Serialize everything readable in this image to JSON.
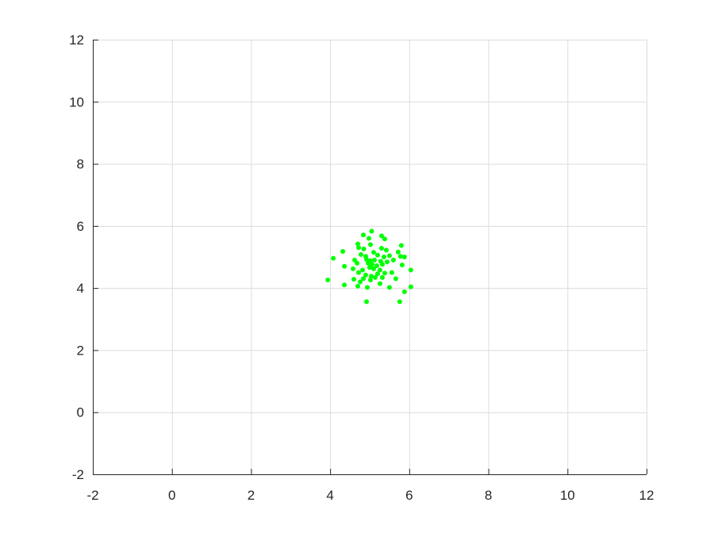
{
  "chart_data": {
    "type": "scatter",
    "title": "",
    "xlabel": "",
    "ylabel": "",
    "xlim": [
      -2,
      12
    ],
    "ylim": [
      -2,
      12
    ],
    "xticks": [
      -2,
      0,
      2,
      4,
      6,
      8,
      10,
      12
    ],
    "yticks": [
      -2,
      0,
      2,
      4,
      6,
      8,
      10,
      12
    ],
    "grid": true,
    "legend": "none",
    "series": [
      {
        "color": "#00ff00",
        "marker": "filled-circle",
        "points": [
          [
            5.05,
            5.83
          ],
          [
            5.3,
            5.68
          ],
          [
            4.84,
            5.71
          ],
          [
            4.98,
            5.6
          ],
          [
            5.38,
            5.58
          ],
          [
            4.7,
            5.42
          ],
          [
            5.02,
            5.4
          ],
          [
            5.8,
            5.37
          ],
          [
            4.72,
            5.3
          ],
          [
            4.85,
            5.26
          ],
          [
            5.3,
            5.28
          ],
          [
            5.42,
            5.22
          ],
          [
            5.72,
            5.16
          ],
          [
            4.32,
            5.18
          ],
          [
            5.1,
            5.15
          ],
          [
            4.78,
            5.08
          ],
          [
            4.9,
            5.02
          ],
          [
            5.2,
            5.06
          ],
          [
            5.36,
            5.0
          ],
          [
            5.5,
            5.04
          ],
          [
            5.78,
            5.02
          ],
          [
            5.88,
            5.0
          ],
          [
            4.08,
            4.96
          ],
          [
            4.62,
            4.9
          ],
          [
            4.92,
            4.92
          ],
          [
            5.02,
            4.88
          ],
          [
            5.12,
            4.9
          ],
          [
            5.28,
            4.86
          ],
          [
            5.44,
            4.84
          ],
          [
            5.6,
            4.9
          ],
          [
            4.68,
            4.8
          ],
          [
            4.96,
            4.8
          ],
          [
            5.06,
            4.76
          ],
          [
            5.18,
            4.72
          ],
          [
            5.32,
            4.76
          ],
          [
            5.82,
            4.74
          ],
          [
            4.36,
            4.7
          ],
          [
            5.0,
            4.66
          ],
          [
            5.1,
            4.62
          ],
          [
            5.26,
            4.58
          ],
          [
            4.58,
            4.62
          ],
          [
            4.82,
            4.58
          ],
          [
            6.04,
            4.58
          ],
          [
            4.72,
            4.5
          ],
          [
            5.2,
            4.46
          ],
          [
            5.38,
            4.48
          ],
          [
            5.56,
            4.5
          ],
          [
            4.9,
            4.42
          ],
          [
            5.04,
            4.38
          ],
          [
            5.14,
            4.34
          ],
          [
            4.84,
            4.3
          ],
          [
            5.32,
            4.34
          ],
          [
            5.66,
            4.3
          ],
          [
            3.94,
            4.26
          ],
          [
            4.6,
            4.28
          ],
          [
            5.02,
            4.26
          ],
          [
            4.76,
            4.2
          ],
          [
            5.26,
            4.14
          ],
          [
            4.36,
            4.1
          ],
          [
            4.7,
            4.06
          ],
          [
            5.5,
            4.02
          ],
          [
            6.04,
            4.04
          ],
          [
            4.94,
            4.02
          ],
          [
            5.88,
            3.88
          ],
          [
            4.92,
            3.56
          ],
          [
            5.76,
            3.56
          ]
        ]
      }
    ]
  }
}
